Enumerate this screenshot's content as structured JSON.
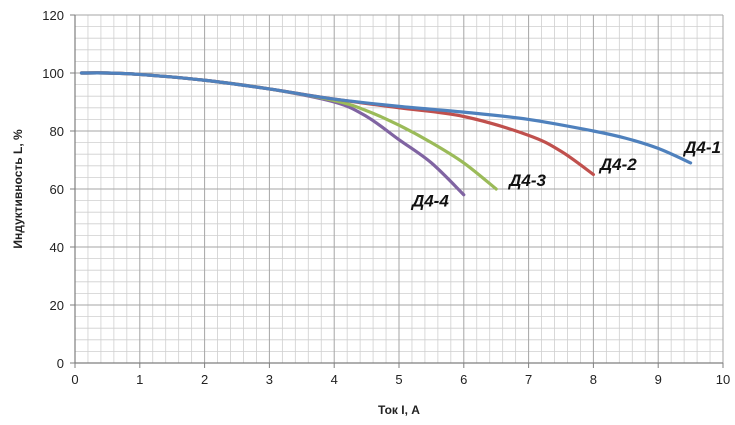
{
  "chart_data": {
    "type": "line",
    "title": "",
    "xlabel": "Ток I, А",
    "ylabel": "Индуктивность  L, %",
    "xlim": [
      0,
      10
    ],
    "ylim": [
      0,
      120
    ],
    "x_ticks": [
      "0",
      "1",
      "2",
      "3",
      "4",
      "5",
      "6",
      "7",
      "8",
      "9",
      "10"
    ],
    "y_ticks": [
      "0",
      "20",
      "40",
      "60",
      "80",
      "100",
      "120"
    ],
    "grid": true,
    "legend": "none (series labelled directly on the curves)",
    "series": [
      {
        "name": "Д4-1",
        "color": "#4f81bd",
        "points": [
          [
            0.1,
            100
          ],
          [
            0.5,
            100
          ],
          [
            1,
            99.5
          ],
          [
            2,
            97.5
          ],
          [
            3,
            94.5
          ],
          [
            4,
            91
          ],
          [
            5,
            88.5
          ],
          [
            6,
            86.5
          ],
          [
            7,
            84
          ],
          [
            8,
            80
          ],
          [
            8.5,
            77.5
          ],
          [
            9,
            74
          ],
          [
            9.5,
            69
          ]
        ]
      },
      {
        "name": "Д4-2",
        "color": "#c0504d",
        "points": [
          [
            0.1,
            100
          ],
          [
            0.5,
            100
          ],
          [
            1,
            99.5
          ],
          [
            2,
            97.5
          ],
          [
            3,
            94.5
          ],
          [
            4,
            91
          ],
          [
            5,
            88
          ],
          [
            6,
            85
          ],
          [
            7,
            78.5
          ],
          [
            7.5,
            73
          ],
          [
            8,
            65
          ]
        ]
      },
      {
        "name": "Д4-3",
        "color": "#9bbb59",
        "points": [
          [
            0.1,
            100
          ],
          [
            0.5,
            100
          ],
          [
            1,
            99.5
          ],
          [
            2,
            97.5
          ],
          [
            3,
            94.5
          ],
          [
            4,
            90.5
          ],
          [
            4.5,
            87
          ],
          [
            5,
            82
          ],
          [
            5.5,
            76
          ],
          [
            6,
            69
          ],
          [
            6.5,
            60
          ]
        ]
      },
      {
        "name": "Д4-4",
        "color": "#8064a2",
        "points": [
          [
            0.1,
            100
          ],
          [
            0.5,
            100
          ],
          [
            1,
            99.5
          ],
          [
            2,
            97.5
          ],
          [
            3,
            94.5
          ],
          [
            4,
            90
          ],
          [
            4.5,
            85
          ],
          [
            5,
            77
          ],
          [
            5.5,
            69
          ],
          [
            6,
            58
          ]
        ]
      }
    ],
    "annotations": [
      {
        "text": "Д4-1",
        "x": 9.4,
        "y": 72.5
      },
      {
        "text": "Д4-2",
        "x": 8.1,
        "y": 66.5
      },
      {
        "text": "Д4-3",
        "x": 6.7,
        "y": 61
      },
      {
        "text": "Д4-4",
        "x": 5.2,
        "y": 54
      }
    ]
  }
}
